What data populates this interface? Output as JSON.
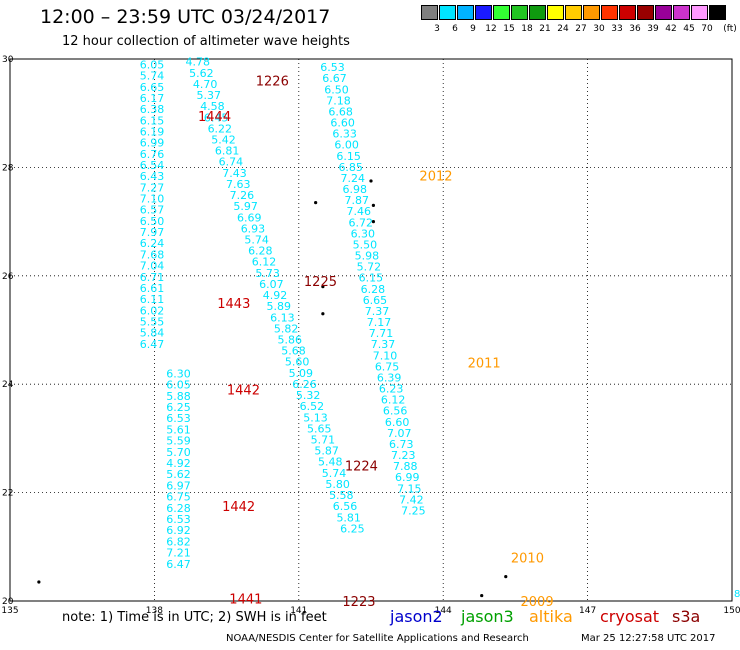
{
  "title": "12:00 – 23:59 UTC 03/24/2017",
  "subtitle": "12 hour collection of altimeter wave heights",
  "legend": {
    "unit": "(ft)",
    "bins": [
      {
        "label": "",
        "color": "#7f7f7f"
      },
      {
        "label": "3",
        "color": "#00e5ff"
      },
      {
        "label": "6",
        "color": "#00b2ff"
      },
      {
        "label": "9",
        "color": "#1a1aff"
      },
      {
        "label": "12",
        "color": "#33ff33"
      },
      {
        "label": "15",
        "color": "#21c421"
      },
      {
        "label": "18",
        "color": "#0f9a0f"
      },
      {
        "label": "21",
        "color": "#ffff00"
      },
      {
        "label": "24",
        "color": "#ffcc00"
      },
      {
        "label": "27",
        "color": "#ff9900"
      },
      {
        "label": "30",
        "color": "#ff3300"
      },
      {
        "label": "33",
        "color": "#cc0000"
      },
      {
        "label": "36",
        "color": "#990000"
      },
      {
        "label": "39",
        "color": "#990099"
      },
      {
        "label": "42",
        "color": "#cc33cc"
      },
      {
        "label": "45",
        "color": "#ff99ff"
      },
      {
        "label": "70",
        "color": "#000000"
      }
    ]
  },
  "map": {
    "lon_ticks": [
      "135",
      "138",
      "141",
      "144",
      "147",
      "150"
    ],
    "lat_ticks": [
      "20",
      "22",
      "24",
      "26",
      "28",
      "30"
    ],
    "lon_range": [
      135,
      150
    ],
    "lat_range": [
      20,
      30
    ],
    "track_color": "#00e5ff",
    "tracks": [
      {
        "lon_start": 137.95,
        "lon_step": 0.0,
        "lat_start": 29.9,
        "lat_step": -0.2062,
        "values": [
          "6.05",
          "5.74",
          "6.65",
          "6.17",
          "6.38",
          "6.15",
          "6.19",
          "6.99",
          "6.76",
          "6.54",
          "6.43",
          "7.27",
          "7.10",
          "6.57",
          "6.50",
          "7.97",
          "6.24",
          "7.68",
          "7.04",
          "6.71",
          "6.61",
          "6.11",
          "6.02",
          "5.55",
          "5.84",
          "6.47"
        ]
      },
      {
        "lon_start": 138.5,
        "lon_step": 0.0,
        "lat_start": 24.2,
        "lat_step": -0.2067,
        "values": [
          "6.30",
          "6.05",
          "5.88",
          "6.25",
          "6.53",
          "5.61",
          "5.59",
          "5.70",
          "4.92",
          "5.62",
          "6.97",
          "6.75",
          "6.28",
          "6.53",
          "6.92",
          "6.82",
          "7.21",
          "6.47"
        ]
      },
      {
        "lon_start": 138.9,
        "lon_step": 0.0765,
        "lat_start": 29.95,
        "lat_step": -0.205,
        "values": [
          "4.78",
          "5.62",
          "4.70",
          "5.37",
          "4.58",
          "6.45",
          "6.22",
          "5.42",
          "6.81",
          "6.74",
          "7.43",
          "7.63",
          "7.26",
          "5.97",
          "6.69",
          "6.93",
          "5.74",
          "6.28",
          "6.12",
          "5.73",
          "6.07",
          "4.92",
          "5.89",
          "6.13",
          "5.82",
          "5.86",
          "5.68",
          "5.60",
          "5.09",
          "6.26",
          "5.32",
          "6.52",
          "5.13",
          "5.65",
          "5.71",
          "5.87",
          "5.48",
          "5.74",
          "5.80",
          "5.58",
          "6.56",
          "5.81",
          "6.25"
        ]
      },
      {
        "lon_start": 141.7,
        "lon_step": 0.042,
        "lat_start": 29.85,
        "lat_step": -0.2045,
        "values": [
          "6.53",
          "6.67",
          "6.50",
          "7.18",
          "6.68",
          "6.60",
          "6.33",
          "6.00",
          "6.15",
          "6.85",
          "7.24",
          "6.98",
          "7.87",
          "7.46",
          "6.72",
          "6.30",
          "5.50",
          "5.98",
          "5.72",
          "6.15",
          "6.28",
          "6.65",
          "7.37",
          "7.17",
          "7.71",
          "7.37",
          "7.10",
          "6.75",
          "6.39",
          "6.23",
          "6.12",
          "6.56",
          "6.60",
          "7.07",
          "6.73",
          "7.23",
          "7.88",
          "6.99",
          "7.15",
          "7.42",
          "7.25"
        ]
      }
    ],
    "pass_labels": [
      {
        "text": "1226",
        "lon": 140.45,
        "lat": 29.6,
        "color": "#8b0000"
      },
      {
        "text": "1444",
        "lon": 139.25,
        "lat": 28.95,
        "color": "#cc0000"
      },
      {
        "text": "2012",
        "lon": 143.85,
        "lat": 27.85,
        "color": "#ff9900"
      },
      {
        "text": "1225",
        "lon": 141.45,
        "lat": 25.9,
        "color": "#8b0000"
      },
      {
        "text": "1443",
        "lon": 139.65,
        "lat": 25.5,
        "color": "#cc0000"
      },
      {
        "text": "2011",
        "lon": 144.85,
        "lat": 24.4,
        "color": "#ff9900"
      },
      {
        "text": "1442",
        "lon": 139.85,
        "lat": 23.9,
        "color": "#cc0000"
      },
      {
        "text": "1224",
        "lon": 142.3,
        "lat": 22.5,
        "color": "#8b0000"
      },
      {
        "text": "1442",
        "lon": 139.75,
        "lat": 21.75,
        "color": "#cc0000"
      },
      {
        "text": "2010",
        "lon": 145.75,
        "lat": 20.8,
        "color": "#ff9900"
      },
      {
        "text": "1441",
        "lon": 139.9,
        "lat": 20.05,
        "color": "#cc0000"
      },
      {
        "text": "2009",
        "lon": 145.95,
        "lat": 20.0,
        "color": "#ff9900"
      },
      {
        "text": "1223",
        "lon": 142.25,
        "lat": 20.0,
        "color": "#8b0000"
      }
    ],
    "islands": [
      {
        "lon": 135.6,
        "lat": 20.35
      },
      {
        "lon": 142.5,
        "lat": 27.75
      },
      {
        "lon": 142.55,
        "lat": 27.3
      },
      {
        "lon": 142.55,
        "lat": 27.0
      },
      {
        "lon": 141.35,
        "lat": 27.35
      },
      {
        "lon": 141.5,
        "lat": 25.8
      },
      {
        "lon": 141.5,
        "lat": 25.3
      },
      {
        "lon": 145.3,
        "lat": 20.45
      },
      {
        "lon": 144.8,
        "lat": 20.1
      }
    ],
    "edge_value": "8"
  },
  "note": "note: 1) Time is in UTC; 2) SWH is in feet",
  "satellites": [
    {
      "name": "jason2",
      "color": "#0000cc"
    },
    {
      "name": "jason3",
      "color": "#00a000"
    },
    {
      "name": "altika",
      "color": "#ff9900"
    },
    {
      "name": "cryosat",
      "color": "#cc0000"
    },
    {
      "name": "s3a",
      "color": "#8b0000"
    }
  ],
  "footer_left": "NOAA/NESDIS Center for Satellite Applications and Research",
  "footer_right": "Mar 25 12:27:58 UTC 2017"
}
